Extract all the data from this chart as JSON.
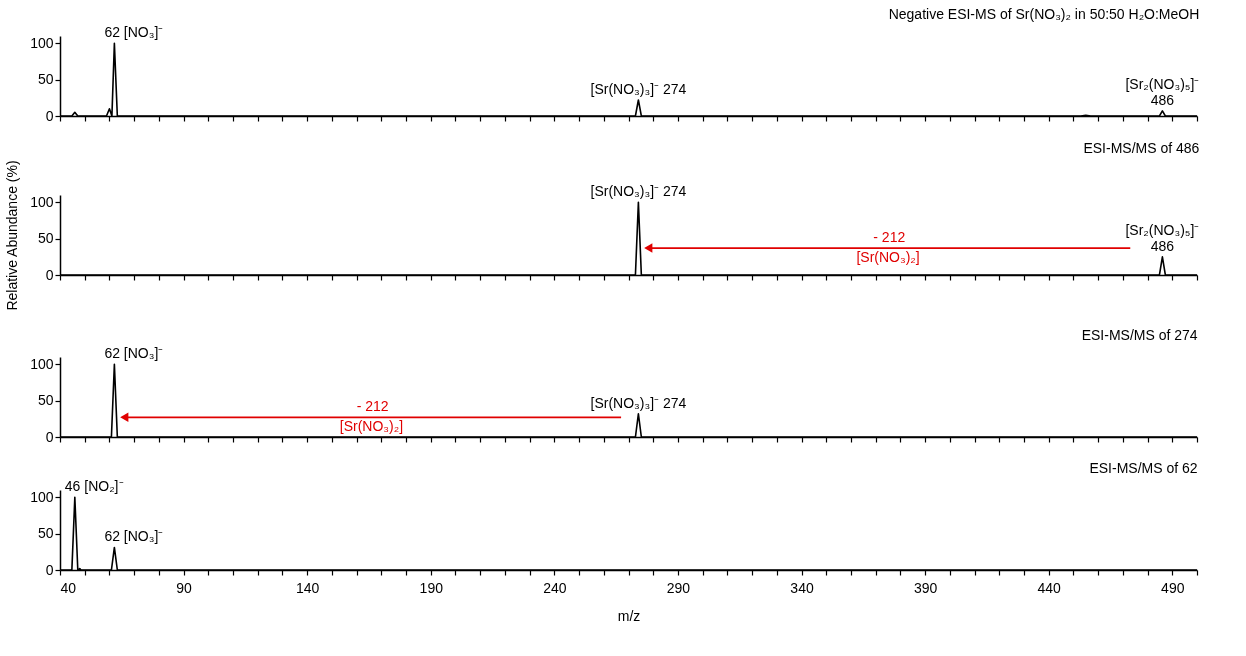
{
  "chart_data": [
    {
      "type": "line",
      "title": "Negative ESI-MS of Sr(NO₃)₂ in 50:50 H₂O:MeOH",
      "tick_labels": "y",
      "grid": false,
      "xlim": [
        40,
        500
      ],
      "ylim": [
        0,
        110
      ],
      "yticks": [
        0,
        50,
        100
      ],
      "xticks": [
        {
          "value": 40,
          "label": null
        },
        {
          "value": 50,
          "label": null
        },
        {
          "value": 60,
          "label": null
        },
        {
          "value": 70,
          "label": null
        },
        {
          "value": 80,
          "label": null
        },
        {
          "value": 90,
          "label": null
        },
        {
          "value": 100,
          "label": null
        },
        {
          "value": 110,
          "label": null
        },
        {
          "value": 120,
          "label": null
        },
        {
          "value": 130,
          "label": null
        },
        {
          "value": 140,
          "label": null
        },
        {
          "value": 150,
          "label": null
        },
        {
          "value": 160,
          "label": null
        },
        {
          "value": 170,
          "label": null
        },
        {
          "value": 180,
          "label": null
        },
        {
          "value": 190,
          "label": null
        },
        {
          "value": 200,
          "label": null
        },
        {
          "value": 210,
          "label": null
        },
        {
          "value": 220,
          "label": null
        },
        {
          "value": 230,
          "label": null
        },
        {
          "value": 240,
          "label": null
        },
        {
          "value": 250,
          "label": null
        },
        {
          "value": 260,
          "label": null
        },
        {
          "value": 270,
          "label": null
        },
        {
          "value": 280,
          "label": null
        },
        {
          "value": 290,
          "label": null
        },
        {
          "value": 300,
          "label": null
        },
        {
          "value": 310,
          "label": null
        },
        {
          "value": 320,
          "label": null
        },
        {
          "value": 330,
          "label": null
        },
        {
          "value": 340,
          "label": null
        },
        {
          "value": 350,
          "label": null
        },
        {
          "value": 360,
          "label": null
        },
        {
          "value": 370,
          "label": null
        },
        {
          "value": 380,
          "label": null
        },
        {
          "value": 390,
          "label": null
        },
        {
          "value": 400,
          "label": null
        },
        {
          "value": 410,
          "label": null
        },
        {
          "value": 420,
          "label": null
        },
        {
          "value": 430,
          "label": null
        },
        {
          "value": 440,
          "label": null
        },
        {
          "value": 450,
          "label": null
        },
        {
          "value": 460,
          "label": null
        },
        {
          "value": 470,
          "label": null
        },
        {
          "value": 480,
          "label": null
        },
        {
          "value": 490,
          "label": null
        },
        {
          "value": 500,
          "label": null
        }
      ],
      "x": [
        40,
        44.8,
        46,
        47.2,
        58.8,
        60,
        61,
        62,
        63.2,
        272.8,
        274,
        275.2,
        453,
        455,
        457,
        484.8,
        486,
        487.2,
        500
      ],
      "series": [
        {
          "color": "#000000",
          "values": [
            0,
            0,
            5,
            0,
            0,
            10,
            0,
            100,
            0,
            0,
            22,
            0,
            0,
            1,
            0,
            0,
            7,
            0,
            0
          ]
        }
      ],
      "annotations": [
        {
          "text": "62 [NO₃]⁻",
          "x": 62,
          "y": 100
        },
        {
          "text": "[Sr(NO₃)₃]⁻ 274",
          "x": 274,
          "y": 22
        },
        {
          "text": "[Sr₂(NO₃)₅]⁻\n486",
          "x": 486,
          "y": 7
        }
      ]
    },
    {
      "type": "line",
      "title": "ESI-MS/MS of 486",
      "ylabel": "Relative Abundance (%)",
      "tick_labels": "y",
      "grid": false,
      "xlim": [
        40,
        500
      ],
      "ylim": [
        0,
        110
      ],
      "yticks": [
        0,
        50,
        100
      ],
      "xticks": [
        {
          "value": 40,
          "label": null
        },
        {
          "value": 50,
          "label": null
        },
        {
          "value": 60,
          "label": null
        },
        {
          "value": 70,
          "label": null
        },
        {
          "value": 80,
          "label": null
        },
        {
          "value": 90,
          "label": null
        },
        {
          "value": 100,
          "label": null
        },
        {
          "value": 110,
          "label": null
        },
        {
          "value": 120,
          "label": null
        },
        {
          "value": 130,
          "label": null
        },
        {
          "value": 140,
          "label": null
        },
        {
          "value": 150,
          "label": null
        },
        {
          "value": 160,
          "label": null
        },
        {
          "value": 170,
          "label": null
        },
        {
          "value": 180,
          "label": null
        },
        {
          "value": 190,
          "label": null
        },
        {
          "value": 200,
          "label": null
        },
        {
          "value": 210,
          "label": null
        },
        {
          "value": 220,
          "label": null
        },
        {
          "value": 230,
          "label": null
        },
        {
          "value": 240,
          "label": null
        },
        {
          "value": 250,
          "label": null
        },
        {
          "value": 260,
          "label": null
        },
        {
          "value": 270,
          "label": null
        },
        {
          "value": 280,
          "label": null
        },
        {
          "value": 290,
          "label": null
        },
        {
          "value": 300,
          "label": null
        },
        {
          "value": 310,
          "label": null
        },
        {
          "value": 320,
          "label": null
        },
        {
          "value": 330,
          "label": null
        },
        {
          "value": 340,
          "label": null
        },
        {
          "value": 350,
          "label": null
        },
        {
          "value": 360,
          "label": null
        },
        {
          "value": 370,
          "label": null
        },
        {
          "value": 380,
          "label": null
        },
        {
          "value": 390,
          "label": null
        },
        {
          "value": 400,
          "label": null
        },
        {
          "value": 410,
          "label": null
        },
        {
          "value": 420,
          "label": null
        },
        {
          "value": 430,
          "label": null
        },
        {
          "value": 440,
          "label": null
        },
        {
          "value": 450,
          "label": null
        },
        {
          "value": 460,
          "label": null
        },
        {
          "value": 470,
          "label": null
        },
        {
          "value": 480,
          "label": null
        },
        {
          "value": 490,
          "label": null
        },
        {
          "value": 500,
          "label": null
        }
      ],
      "x": [
        40,
        272.8,
        274,
        275.2,
        484.8,
        486,
        487.2,
        500
      ],
      "series": [
        {
          "color": "#000000",
          "values": [
            0,
            0,
            100,
            0,
            0,
            25,
            0,
            0
          ]
        },
        {
          "type": "line",
          "name": "- 212",
          "color": "#e00000",
          "x": [
            473,
            278
          ],
          "values": [
            37,
            37
          ]
        }
      ],
      "annotations": [
        {
          "text": "[Sr(NO₃)₃]⁻ 274",
          "x": 274,
          "y": 100
        },
        {
          "text": "[Sr₂(NO₃)₅]⁻\n486",
          "x": 486,
          "y": 25
        },
        {
          "text": "[Sr(NO₃)₂]",
          "x": 375,
          "y": 37
        }
      ]
    },
    {
      "type": "line",
      "title": "ESI-MS/MS of 274",
      "tick_labels": "y",
      "grid": false,
      "xlim": [
        40,
        500
      ],
      "ylim": [
        0,
        110
      ],
      "yticks": [
        0,
        50,
        100
      ],
      "xticks": [
        {
          "value": 40,
          "label": null
        },
        {
          "value": 50,
          "label": null
        },
        {
          "value": 60,
          "label": null
        },
        {
          "value": 70,
          "label": null
        },
        {
          "value": 80,
          "label": null
        },
        {
          "value": 90,
          "label": null
        },
        {
          "value": 100,
          "label": null
        },
        {
          "value": 110,
          "label": null
        },
        {
          "value": 120,
          "label": null
        },
        {
          "value": 130,
          "label": null
        },
        {
          "value": 140,
          "label": null
        },
        {
          "value": 150,
          "label": null
        },
        {
          "value": 160,
          "label": null
        },
        {
          "value": 170,
          "label": null
        },
        {
          "value": 180,
          "label": null
        },
        {
          "value": 190,
          "label": null
        },
        {
          "value": 200,
          "label": null
        },
        {
          "value": 210,
          "label": null
        },
        {
          "value": 220,
          "label": null
        },
        {
          "value": 230,
          "label": null
        },
        {
          "value": 240,
          "label": null
        },
        {
          "value": 250,
          "label": null
        },
        {
          "value": 260,
          "label": null
        },
        {
          "value": 270,
          "label": null
        },
        {
          "value": 280,
          "label": null
        },
        {
          "value": 290,
          "label": null
        },
        {
          "value": 300,
          "label": null
        },
        {
          "value": 310,
          "label": null
        },
        {
          "value": 320,
          "label": null
        },
        {
          "value": 330,
          "label": null
        },
        {
          "value": 340,
          "label": null
        },
        {
          "value": 350,
          "label": null
        },
        {
          "value": 360,
          "label": null
        },
        {
          "value": 370,
          "label": null
        },
        {
          "value": 380,
          "label": null
        },
        {
          "value": 390,
          "label": null
        },
        {
          "value": 400,
          "label": null
        },
        {
          "value": 410,
          "label": null
        },
        {
          "value": 420,
          "label": null
        },
        {
          "value": 430,
          "label": null
        },
        {
          "value": 440,
          "label": null
        },
        {
          "value": 450,
          "label": null
        },
        {
          "value": 460,
          "label": null
        },
        {
          "value": 470,
          "label": null
        },
        {
          "value": 480,
          "label": null
        },
        {
          "value": 490,
          "label": null
        },
        {
          "value": 500,
          "label": null
        }
      ],
      "x": [
        40,
        60.8,
        62,
        63.2,
        272.8,
        274,
        275.2,
        500
      ],
      "series": [
        {
          "color": "#000000",
          "values": [
            0,
            0,
            100,
            0,
            0,
            32,
            0,
            0
          ]
        },
        {
          "type": "line",
          "name": "- 212",
          "color": "#e00000",
          "x": [
            267,
            66
          ],
          "values": [
            27,
            27
          ]
        }
      ],
      "annotations": [
        {
          "text": "62 [NO₃]⁻",
          "x": 62,
          "y": 100
        },
        {
          "text": "[Sr(NO₃)₃]⁻ 274",
          "x": 274,
          "y": 32
        },
        {
          "text": "[Sr(NO₃)₂]",
          "x": 166,
          "y": 27
        }
      ]
    },
    {
      "type": "line",
      "title": "ESI-MS/MS of 62",
      "xlabel": "m/z",
      "grid": false,
      "xlim": [
        40,
        500
      ],
      "ylim": [
        0,
        110
      ],
      "yticks": [
        0,
        50,
        100
      ],
      "xticks": [
        {
          "value": 40,
          "label": "40"
        },
        {
          "value": 50,
          "label": null
        },
        {
          "value": 60,
          "label": null
        },
        {
          "value": 70,
          "label": null
        },
        {
          "value": 80,
          "label": null
        },
        {
          "value": 90,
          "label": "90"
        },
        {
          "value": 100,
          "label": null
        },
        {
          "value": 110,
          "label": null
        },
        {
          "value": 120,
          "label": null
        },
        {
          "value": 130,
          "label": null
        },
        {
          "value": 140,
          "label": "140"
        },
        {
          "value": 150,
          "label": null
        },
        {
          "value": 160,
          "label": null
        },
        {
          "value": 170,
          "label": null
        },
        {
          "value": 180,
          "label": null
        },
        {
          "value": 190,
          "label": "190"
        },
        {
          "value": 200,
          "label": null
        },
        {
          "value": 210,
          "label": null
        },
        {
          "value": 220,
          "label": null
        },
        {
          "value": 230,
          "label": null
        },
        {
          "value": 240,
          "label": "240"
        },
        {
          "value": 250,
          "label": null
        },
        {
          "value": 260,
          "label": null
        },
        {
          "value": 270,
          "label": null
        },
        {
          "value": 280,
          "label": null
        },
        {
          "value": 290,
          "label": "290"
        },
        {
          "value": 300,
          "label": null
        },
        {
          "value": 310,
          "label": null
        },
        {
          "value": 320,
          "label": null
        },
        {
          "value": 330,
          "label": null
        },
        {
          "value": 340,
          "label": "340"
        },
        {
          "value": 350,
          "label": null
        },
        {
          "value": 360,
          "label": null
        },
        {
          "value": 370,
          "label": null
        },
        {
          "value": 380,
          "label": null
        },
        {
          "value": 390,
          "label": "390"
        },
        {
          "value": 400,
          "label": null
        },
        {
          "value": 410,
          "label": null
        },
        {
          "value": 420,
          "label": null
        },
        {
          "value": 430,
          "label": null
        },
        {
          "value": 440,
          "label": "440"
        },
        {
          "value": 450,
          "label": null
        },
        {
          "value": 460,
          "label": null
        },
        {
          "value": 470,
          "label": null
        },
        {
          "value": 480,
          "label": null
        },
        {
          "value": 490,
          "label": "490"
        },
        {
          "value": 500,
          "label": null
        }
      ],
      "x": [
        40,
        44.8,
        46,
        47.2,
        47.5,
        48,
        48.5,
        60.8,
        62,
        63.2,
        500
      ],
      "series": [
        {
          "color": "#000000",
          "values": [
            0,
            0,
            100,
            0,
            0,
            2,
            0,
            0,
            31,
            0,
            0
          ]
        }
      ],
      "annotations": [
        {
          "text": "46 [NO₂]⁻",
          "x": 46,
          "y": 100
        },
        {
          "text": "62 [NO₃]⁻",
          "x": 62,
          "y": 31
        }
      ]
    }
  ]
}
